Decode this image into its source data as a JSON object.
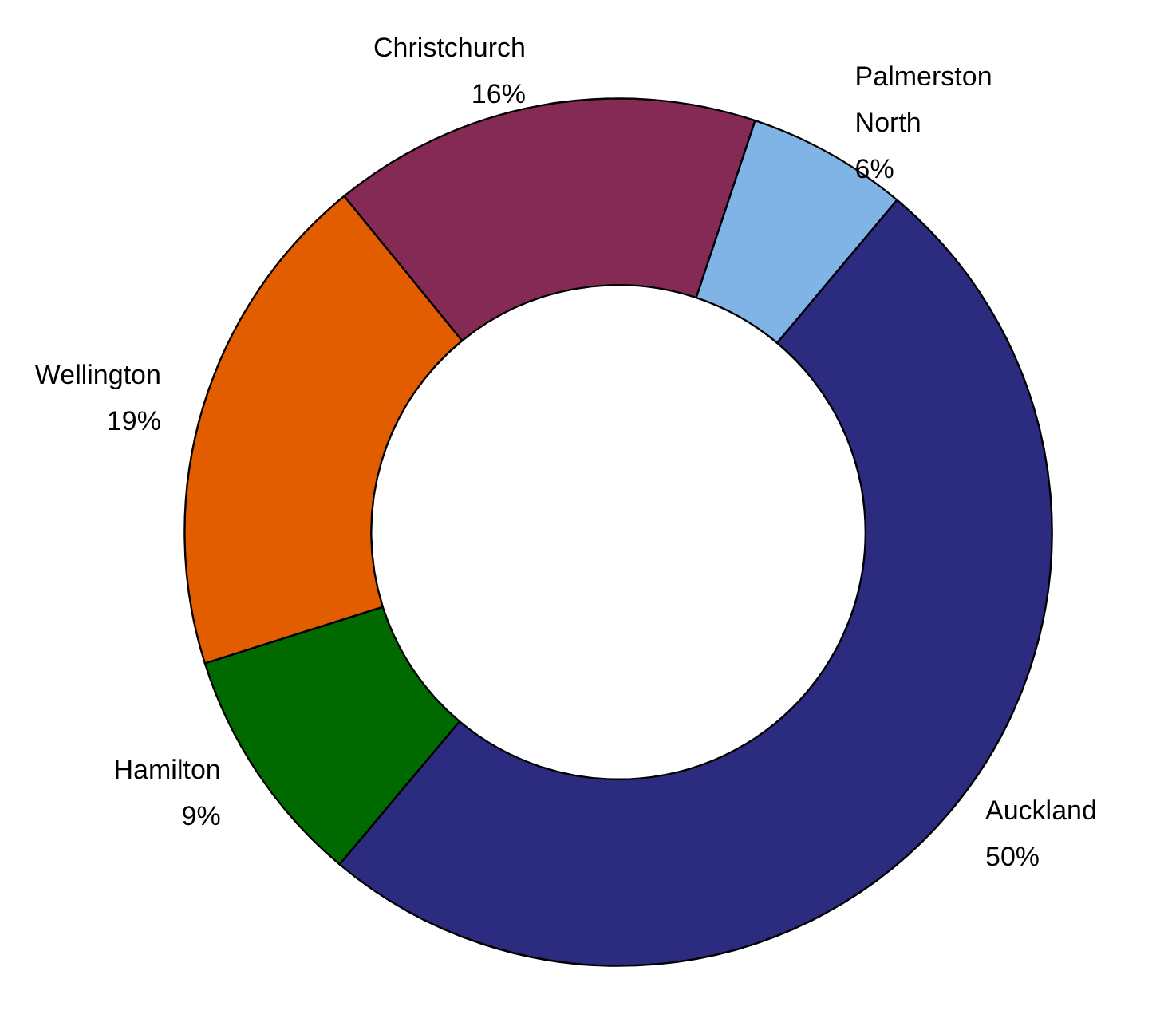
{
  "chart_data": {
    "type": "donut",
    "categories": [
      "Auckland",
      "Hamilton",
      "Wellington",
      "Christchurch",
      "Palmerston North"
    ],
    "values": [
      50,
      9,
      19,
      16,
      6
    ],
    "colors": [
      "#2b2b80",
      "#006a00",
      "#e25c00",
      "#842a55",
      "#80b4e6"
    ],
    "value_labels": [
      "50%",
      "9%",
      "19%",
      "16%",
      "6%"
    ],
    "legend": false
  }
}
